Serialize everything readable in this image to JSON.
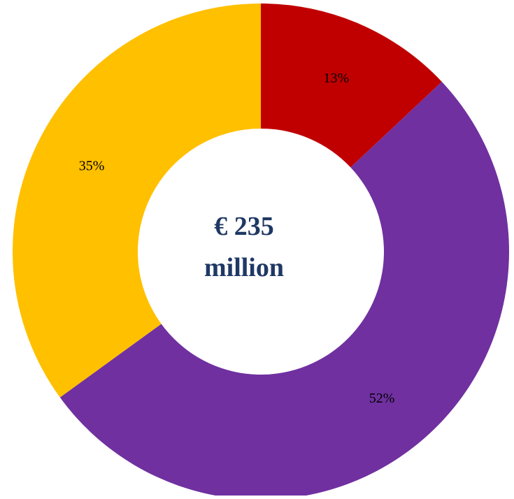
{
  "chart_data": {
    "type": "pie",
    "variant": "donut",
    "slices": [
      {
        "label": "13%",
        "value": 13,
        "color": "#C00000"
      },
      {
        "label": "52%",
        "value": 52,
        "color": "#7030A0"
      },
      {
        "label": "35%",
        "value": 35,
        "color": "#FFC000"
      }
    ],
    "center_text": {
      "line1": "€ 235",
      "line2": "million",
      "color": "#1F3864"
    },
    "start_angle_deg": 0,
    "direction": "clockwise",
    "legend": "none"
  }
}
